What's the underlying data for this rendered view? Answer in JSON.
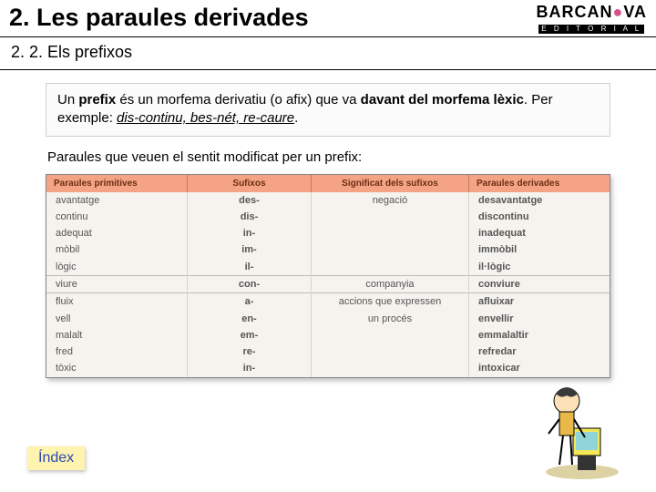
{
  "header": {
    "title": "2. Les paraules derivades",
    "logo_main": "BARCAN",
    "logo_dot": "●",
    "logo_main2": "VA",
    "logo_sub": "E D I T O R I A L"
  },
  "subtitle": "2. 2. Els prefixos",
  "definition": {
    "t1": "Un ",
    "t2": "prefix",
    "t3": " és un morfema derivatiu (o afix) que va ",
    "t4": "davant del morfema lèxic",
    "t5": ". Per exemple: ",
    "ex1": "dis-continu, bes-nét, re-caure",
    "t6": "."
  },
  "intro": "Paraules que veuen el sentit modificat per un prefix:",
  "table": {
    "headers": [
      "Paraules primitives",
      "Sufixos",
      "Significat dels sufixos",
      "Paraules derivades"
    ],
    "col_widths": [
      "25%",
      "22%",
      "28%",
      "25%"
    ],
    "groups": [
      {
        "sep": false,
        "rows": [
          [
            "avantatge",
            "des-",
            "negació",
            "desavantatge"
          ],
          [
            "continu",
            "dis-",
            "",
            "discontinu"
          ],
          [
            "adequat",
            "in-",
            "",
            "inadequat"
          ],
          [
            "mòbil",
            "im-",
            "",
            "immòbil"
          ],
          [
            "lògic",
            "il-",
            "",
            "il·lògic"
          ]
        ]
      },
      {
        "sep": true,
        "rows": [
          [
            "viure",
            "con-",
            "companyia",
            "conviure"
          ]
        ]
      },
      {
        "sep": true,
        "rows": [
          [
            "fluix",
            "a-",
            "accions que expressen",
            "afluixar"
          ],
          [
            "vell",
            "en-",
            "un procés",
            "envellir"
          ],
          [
            "malalt",
            "em-",
            "",
            "emmalaltir"
          ],
          [
            "fred",
            "re-",
            "",
            "refredar"
          ],
          [
            "tòxic",
            "in-",
            "",
            "intoxicar"
          ]
        ]
      }
    ],
    "header_bg": "#f4a385",
    "header_fg": "#6a2e12",
    "cell_bg": "#f5f3ee",
    "cell_fg": "#555555"
  },
  "index_label": "Índex",
  "colors": {
    "index_bg": "#fff3b0",
    "index_fg": "#2a4ab0",
    "logo_dot": "#d94f8c"
  }
}
